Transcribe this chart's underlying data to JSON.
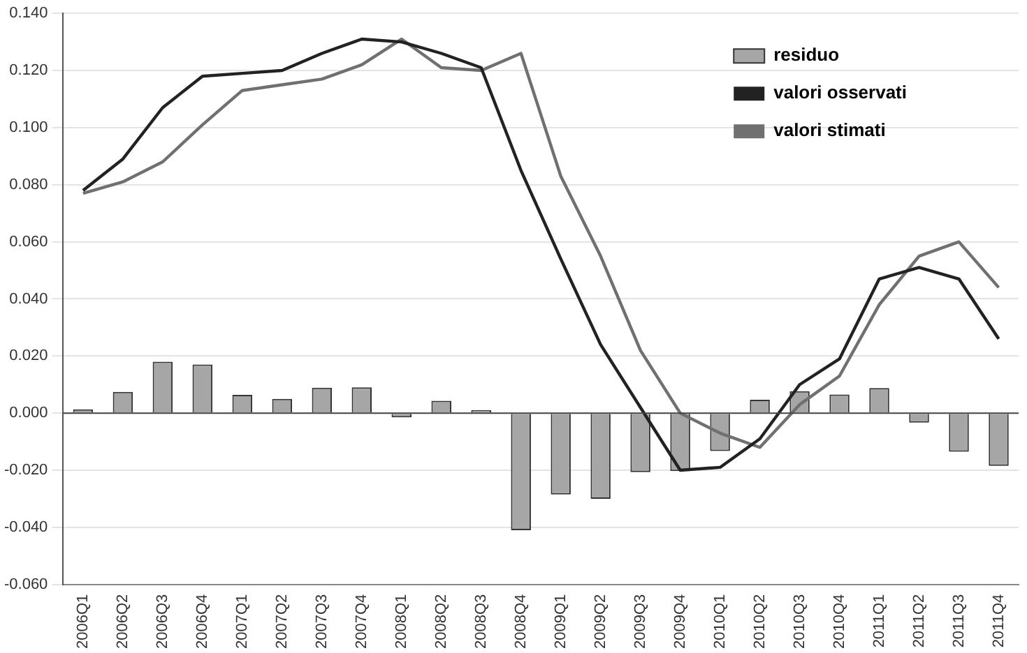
{
  "chart_data": {
    "type": "bar",
    "categories": [
      "2006Q1",
      "2006Q2",
      "2006Q3",
      "2006Q4",
      "2007Q1",
      "2007Q2",
      "2007Q3",
      "2007Q4",
      "2008Q1",
      "2008Q2",
      "2008Q3",
      "2008Q4",
      "2009Q1",
      "2009Q2",
      "2009Q3",
      "2009Q4",
      "2010Q1",
      "2010Q2",
      "2010Q3",
      "2010Q4",
      "2011Q1",
      "2011Q2",
      "2011Q3",
      "2011Q4"
    ],
    "series": [
      {
        "name": "residuo",
        "color": "#a6a6a6",
        "values": [
          0.0013,
          0.0074,
          0.018,
          0.017,
          0.0064,
          0.005,
          0.0089,
          0.009,
          -0.0015,
          0.0043,
          0.001,
          -0.041,
          -0.0285,
          -0.03,
          -0.0207,
          -0.0203,
          -0.0133,
          0.0047,
          0.0077,
          0.0065,
          0.0088,
          -0.0033,
          -0.0135,
          -0.0185
        ]
      },
      {
        "name": "valori osservati",
        "type": "line",
        "color": "#222222",
        "values": [
          0.078,
          0.089,
          0.107,
          0.118,
          0.119,
          0.12,
          0.126,
          0.131,
          0.13,
          0.126,
          0.121,
          0.085,
          0.054,
          0.024,
          0.002,
          -0.02,
          -0.019,
          -0.009,
          0.01,
          0.019,
          0.047,
          0.051,
          0.047,
          0.026
        ]
      },
      {
        "name": "valori stimati",
        "type": "line",
        "color": "#707070",
        "values": [
          0.077,
          0.081,
          0.088,
          0.101,
          0.113,
          0.115,
          0.117,
          0.122,
          0.131,
          0.121,
          0.12,
          0.126,
          0.083,
          0.055,
          0.022,
          0.0,
          -0.007,
          -0.012,
          0.003,
          0.013,
          0.038,
          0.055,
          0.06,
          0.044
        ]
      }
    ],
    "ylim": [
      -0.06,
      0.14
    ],
    "yticks": [
      {
        "value": -0.06,
        "label": "-0.060"
      },
      {
        "value": -0.04,
        "label": "-0.040"
      },
      {
        "value": -0.02,
        "label": "-0.020"
      },
      {
        "value": 0,
        "label": "0.000"
      },
      {
        "value": 0.02,
        "label": "0.020"
      },
      {
        "value": 0.04,
        "label": "0.040"
      },
      {
        "value": 0.06,
        "label": "0.060"
      },
      {
        "value": 0.08,
        "label": "0.080"
      },
      {
        "value": 0.1,
        "label": "0.100"
      },
      {
        "value": 0.12,
        "label": "0.120"
      },
      {
        "value": 0.14,
        "label": "0.140"
      }
    ],
    "grid": "y",
    "legend": "top right",
    "marker": "none",
    "line_style": "solid"
  }
}
